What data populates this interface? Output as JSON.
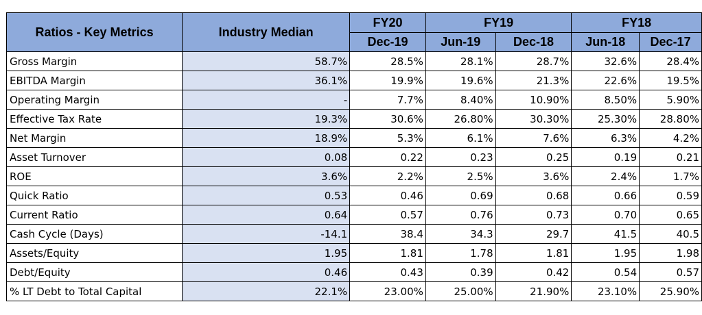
{
  "header": {
    "ratios_label": "Ratios - Key Metrics",
    "industry_median_label": "Industry Median",
    "groups": [
      "FY20",
      "FY19",
      "FY18"
    ],
    "periods": [
      "Dec-19",
      "Jun-19",
      "Dec-18",
      "Jun-18",
      "Dec-17"
    ]
  },
  "rows": [
    {
      "label": "Gross Margin",
      "median": "58.7%",
      "values": [
        "28.5%",
        "28.1%",
        "28.7%",
        "32.6%",
        "28.4%"
      ]
    },
    {
      "label": "EBITDA Margin",
      "median": "36.1%",
      "values": [
        "19.9%",
        "19.6%",
        "21.3%",
        "22.6%",
        "19.5%"
      ]
    },
    {
      "label": "Operating Margin",
      "median": "-",
      "values": [
        "7.7%",
        "8.40%",
        "10.90%",
        "8.50%",
        "5.90%"
      ]
    },
    {
      "label": "Effective Tax Rate",
      "median": "19.3%",
      "values": [
        "30.6%",
        "26.80%",
        "30.30%",
        "25.30%",
        "28.80%"
      ]
    },
    {
      "label": "Net Margin",
      "median": "18.9%",
      "values": [
        "5.3%",
        "6.1%",
        "7.6%",
        "6.3%",
        "4.2%"
      ]
    },
    {
      "label": "Asset Turnover",
      "median": "0.08",
      "values": [
        "0.22",
        "0.23",
        "0.25",
        "0.19",
        "0.21"
      ]
    },
    {
      "label": "ROE",
      "median": "3.6%",
      "values": [
        "2.2%",
        "2.5%",
        "3.6%",
        "2.4%",
        "1.7%"
      ]
    },
    {
      "label": "Quick Ratio",
      "median": "0.53",
      "values": [
        "0.46",
        "0.69",
        "0.68",
        "0.66",
        "0.59"
      ]
    },
    {
      "label": "Current Ratio",
      "median": "0.64",
      "values": [
        "0.57",
        "0.76",
        "0.73",
        "0.70",
        "0.65"
      ]
    },
    {
      "label": "Cash Cycle (Days)",
      "median": "-14.1",
      "values": [
        "38.4",
        "34.3",
        "29.7",
        "41.5",
        "40.5"
      ]
    },
    {
      "label": "Assets/Equity",
      "median": "1.95",
      "values": [
        "1.81",
        "1.78",
        "1.81",
        "1.95",
        "1.98"
      ]
    },
    {
      "label": "Debt/Equity",
      "median": "0.46",
      "values": [
        "0.43",
        "0.39",
        "0.42",
        "0.54",
        "0.57"
      ]
    },
    {
      "label": "% LT Debt to Total Capital",
      "median": "22.1%",
      "values": [
        "23.00%",
        "25.00%",
        "21.90%",
        "23.10%",
        "25.90%"
      ]
    }
  ],
  "colors": {
    "header_bg": "#8eaadb",
    "median_bg": "#d9e1f2"
  }
}
